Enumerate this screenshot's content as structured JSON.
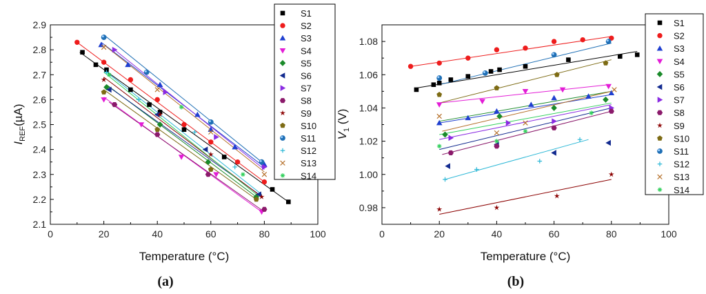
{
  "panels": [
    {
      "label": "(a)",
      "xlabel": "Temperature (°C)",
      "ylabel_main": "I",
      "ylabel_sub": "REF",
      "ylabel_unit": "(µA)",
      "xlim": [
        0,
        100
      ],
      "ylim": [
        2.1,
        2.9
      ],
      "xticks": [
        "0",
        "20",
        "40",
        "60",
        "80",
        "100"
      ],
      "yticks": [
        "2.1",
        "2.2",
        "2.3",
        "2.4",
        "2.5",
        "2.6",
        "2.7",
        "2.8",
        "2.9"
      ]
    },
    {
      "label": "(b)",
      "xlabel": "Temperature (°C)",
      "ylabel_main": "V",
      "ylabel_sub": "1",
      "ylabel_unit": " (V)",
      "xlim": [
        0,
        100
      ],
      "ylim": [
        0.97,
        1.09
      ],
      "xticks": [
        "0",
        "20",
        "40",
        "60",
        "80",
        "100"
      ],
      "yticks": [
        "0.98",
        "1.00",
        "1.02",
        "1.04",
        "1.06",
        "1.08"
      ]
    }
  ],
  "chart_data": [
    {
      "type": "scatter",
      "title": "",
      "xlabel": "Temperature (°C)",
      "ylabel": "IREF(µA)",
      "xlim": [
        0,
        100
      ],
      "ylim": [
        2.1,
        2.9
      ],
      "legend_position": "top-right",
      "series": [
        {
          "name": "S1",
          "color": "#000000",
          "marker": "square",
          "points": [
            [
              12,
              2.79
            ],
            [
              17,
              2.74
            ],
            [
              21,
              2.72
            ],
            [
              30,
              2.64
            ],
            [
              37,
              2.58
            ],
            [
              41,
              2.55
            ],
            [
              50,
              2.48
            ],
            [
              65,
              2.37
            ],
            [
              83,
              2.24
            ],
            [
              89,
              2.19
            ]
          ],
          "fit": [
            [
              11,
              2.79
            ],
            [
              89,
              2.19
            ]
          ]
        },
        {
          "name": "S2",
          "color": "#ee1c1c",
          "marker": "circle",
          "points": [
            [
              10,
              2.83
            ],
            [
              20,
              2.75
            ],
            [
              30,
              2.68
            ],
            [
              40,
              2.6
            ],
            [
              50,
              2.5
            ],
            [
              60,
              2.43
            ],
            [
              70,
              2.35
            ],
            [
              80,
              2.27
            ]
          ],
          "fit": [
            [
              10,
              2.83
            ],
            [
              80,
              2.27
            ]
          ]
        },
        {
          "name": "S3",
          "color": "#1f3fd0",
          "marker": "triangle-up",
          "points": [
            [
              19,
              2.82
            ],
            [
              29,
              2.74
            ],
            [
              41,
              2.66
            ],
            [
              55,
              2.54
            ],
            [
              60,
              2.48
            ],
            [
              69,
              2.41
            ],
            [
              80,
              2.34
            ]
          ],
          "fit": [
            [
              19,
              2.83
            ],
            [
              80,
              2.33
            ]
          ]
        },
        {
          "name": "S4",
          "color": "#e31cd6",
          "marker": "triangle-down",
          "points": [
            [
              20,
              2.6
            ],
            [
              34,
              2.5
            ],
            [
              49,
              2.37
            ],
            [
              62,
              2.3
            ],
            [
              79,
              2.15
            ]
          ],
          "fit": [
            [
              20,
              2.61
            ],
            [
              79,
              2.15
            ]
          ]
        },
        {
          "name": "S5",
          "color": "#1a8a2a",
          "marker": "diamond",
          "points": [
            [
              21,
              2.65
            ],
            [
              41,
              2.5
            ],
            [
              59,
              2.35
            ],
            [
              77,
              2.21
            ]
          ],
          "fit": [
            [
              21,
              2.66
            ],
            [
              77,
              2.21
            ]
          ]
        },
        {
          "name": "S6",
          "color": "#122a8f",
          "marker": "triangle-left",
          "points": [
            [
              22,
              2.64
            ],
            [
              40,
              2.54
            ],
            [
              58,
              2.4
            ],
            [
              78,
              2.22
            ]
          ],
          "fit": [
            [
              22,
              2.65
            ],
            [
              78,
              2.22
            ]
          ]
        },
        {
          "name": "S7",
          "color": "#8a2be2",
          "marker": "triangle-right",
          "points": [
            [
              24,
              2.8
            ],
            [
              43,
              2.63
            ],
            [
              62,
              2.45
            ],
            [
              80,
              2.33
            ]
          ],
          "fit": [
            [
              24,
              2.8
            ],
            [
              80,
              2.32
            ]
          ]
        },
        {
          "name": "S8",
          "color": "#8b1a6b",
          "marker": "hexagon",
          "points": [
            [
              24,
              2.58
            ],
            [
              40,
              2.46
            ],
            [
              59,
              2.3
            ],
            [
              80,
              2.16
            ]
          ],
          "fit": [
            [
              22,
              2.59
            ],
            [
              80,
              2.15
            ]
          ]
        },
        {
          "name": "S9",
          "color": "#8b0000",
          "marker": "star",
          "points": [
            [
              20,
              2.68
            ],
            [
              41,
              2.54
            ],
            [
              60,
              2.38
            ],
            [
              79,
              2.21
            ]
          ],
          "fit": [
            [
              20,
              2.69
            ],
            [
              79,
              2.21
            ]
          ]
        },
        {
          "name": "S10",
          "color": "#7d6b14",
          "marker": "pentagon",
          "points": [
            [
              20,
              2.63
            ],
            [
              40,
              2.48
            ],
            [
              60,
              2.32
            ],
            [
              77,
              2.2
            ]
          ],
          "fit": [
            [
              20,
              2.64
            ],
            [
              77,
              2.2
            ]
          ]
        },
        {
          "name": "S11",
          "color": "#1f6fb5",
          "marker": "circle-shaded",
          "points": [
            [
              20,
              2.85
            ],
            [
              36,
              2.71
            ],
            [
              60,
              2.51
            ],
            [
              79,
              2.35
            ]
          ],
          "fit": [
            [
              20,
              2.86
            ],
            [
              79,
              2.35
            ]
          ]
        },
        {
          "name": "S12",
          "color": "#2ab7d6",
          "marker": "plus",
          "points": [
            [
              21,
              2.71
            ],
            [
              33,
              2.6
            ],
            [
              54,
              2.47
            ],
            [
              69,
              2.33
            ]
          ],
          "fit": [
            [
              21,
              2.71
            ],
            [
              79,
              2.22
            ]
          ]
        },
        {
          "name": "S13",
          "color": "#b5702a",
          "marker": "x",
          "points": [
            [
              20,
              2.81
            ],
            [
              40,
              2.64
            ],
            [
              60,
              2.47
            ],
            [
              80,
              2.3
            ]
          ],
          "fit": [
            [
              20,
              2.82
            ],
            [
              80,
              2.31
            ]
          ]
        },
        {
          "name": "S14",
          "color": "#2fcf5a",
          "marker": "asterisk",
          "points": [
            [
              22,
              2.7
            ],
            [
              49,
              2.57
            ],
            [
              72,
              2.3
            ]
          ],
          "fit": [
            [
              20,
              2.71
            ],
            [
              77,
              2.22
            ]
          ]
        }
      ]
    },
    {
      "type": "scatter",
      "title": "",
      "xlabel": "Temperature (°C)",
      "ylabel": "V1 (V)",
      "xlim": [
        0,
        100
      ],
      "ylim": [
        0.97,
        1.09
      ],
      "legend_position": "top-right",
      "series": [
        {
          "name": "S1",
          "color": "#000000",
          "marker": "square",
          "points": [
            [
              12,
              1.051
            ],
            [
              18,
              1.054
            ],
            [
              20,
              1.055
            ],
            [
              24,
              1.057
            ],
            [
              30,
              1.059
            ],
            [
              38,
              1.062
            ],
            [
              41,
              1.063
            ],
            [
              50,
              1.065
            ],
            [
              65,
              1.069
            ],
            [
              83,
              1.071
            ],
            [
              89,
              1.072
            ]
          ],
          "fit": [
            [
              12,
              1.052
            ],
            [
              89,
              1.074
            ]
          ]
        },
        {
          "name": "S2",
          "color": "#ee1c1c",
          "marker": "circle",
          "points": [
            [
              10,
              1.065
            ],
            [
              20,
              1.067
            ],
            [
              30,
              1.07
            ],
            [
              40,
              1.075
            ],
            [
              50,
              1.076
            ],
            [
              60,
              1.08
            ],
            [
              70,
              1.081
            ],
            [
              80,
              1.082
            ]
          ],
          "fit": [
            [
              10,
              1.065
            ],
            [
              80,
              1.083
            ]
          ]
        },
        {
          "name": "S3",
          "color": "#1f3fd0",
          "marker": "triangle-up",
          "points": [
            [
              20,
              1.031
            ],
            [
              30,
              1.034
            ],
            [
              40,
              1.038
            ],
            [
              52,
              1.042
            ],
            [
              60,
              1.046
            ],
            [
              72,
              1.047
            ],
            [
              80,
              1.049
            ]
          ],
          "fit": [
            [
              20,
              1.031
            ],
            [
              80,
              1.048
            ]
          ]
        },
        {
          "name": "S4",
          "color": "#e31cd6",
          "marker": "triangle-down",
          "points": [
            [
              20,
              1.042
            ],
            [
              35,
              1.044
            ],
            [
              50,
              1.05
            ],
            [
              63,
              1.051
            ],
            [
              79,
              1.053
            ]
          ],
          "fit": [
            [
              20,
              1.043
            ],
            [
              79,
              1.054
            ]
          ]
        },
        {
          "name": "S5",
          "color": "#1a8a2a",
          "marker": "diamond",
          "points": [
            [
              22,
              1.024
            ],
            [
              41,
              1.035
            ],
            [
              60,
              1.04
            ],
            [
              78,
              1.045
            ]
          ],
          "fit": [
            [
              20,
              1.032
            ],
            [
              80,
              1.05
            ]
          ]
        },
        {
          "name": "S6",
          "color": "#122a8f",
          "marker": "triangle-left",
          "points": [
            [
              23,
              1.005
            ],
            [
              40,
              1.018
            ],
            [
              60,
              1.013
            ],
            [
              79,
              1.019
            ]
          ],
          "fit": [
            [
              20,
              1.015
            ],
            [
              80,
              1.04
            ]
          ]
        },
        {
          "name": "S7",
          "color": "#8a2be2",
          "marker": "triangle-right",
          "points": [
            [
              24,
              1.022
            ],
            [
              44,
              1.031
            ],
            [
              60,
              1.032
            ],
            [
              80,
              1.04
            ]
          ],
          "fit": [
            [
              20,
              1.021
            ],
            [
              80,
              1.042
            ]
          ]
        },
        {
          "name": "S8",
          "color": "#8b1a6b",
          "marker": "hexagon",
          "points": [
            [
              24,
              1.013
            ],
            [
              40,
              1.017
            ],
            [
              60,
              1.028
            ],
            [
              80,
              1.038
            ]
          ],
          "fit": [
            [
              21,
              1.012
            ],
            [
              80,
              1.038
            ]
          ]
        },
        {
          "name": "S9",
          "color": "#8b0000",
          "marker": "star",
          "points": [
            [
              20,
              0.979
            ],
            [
              40,
              0.98
            ],
            [
              61,
              0.987
            ],
            [
              80,
              1.0
            ]
          ],
          "fit": [
            [
              20,
              0.976
            ],
            [
              80,
              0.997
            ]
          ]
        },
        {
          "name": "S10",
          "color": "#7d6b14",
          "marker": "pentagon",
          "points": [
            [
              20,
              1.048
            ],
            [
              40,
              1.052
            ],
            [
              61,
              1.06
            ],
            [
              78,
              1.067
            ]
          ],
          "fit": [
            [
              20,
              1.043
            ],
            [
              80,
              1.069
            ]
          ]
        },
        {
          "name": "S11",
          "color": "#1f6fb5",
          "marker": "circle-shaded",
          "points": [
            [
              20,
              1.058
            ],
            [
              36,
              1.061
            ],
            [
              60,
              1.072
            ],
            [
              79,
              1.08
            ]
          ],
          "fit": [
            [
              20,
              1.054
            ],
            [
              80,
              1.079
            ]
          ]
        },
        {
          "name": "S12",
          "color": "#2ab7d6",
          "marker": "plus",
          "points": [
            [
              22,
              0.997
            ],
            [
              33,
              1.003
            ],
            [
              55,
              1.008
            ],
            [
              69,
              1.021
            ]
          ],
          "fit": [
            [
              22,
              0.997
            ],
            [
              72,
              1.021
            ]
          ]
        },
        {
          "name": "S13",
          "color": "#b5702a",
          "marker": "x",
          "points": [
            [
              20,
              1.035
            ],
            [
              40,
              1.025
            ],
            [
              50,
              1.031
            ],
            [
              81,
              1.051
            ]
          ],
          "fit": [
            [
              21,
              1.026
            ],
            [
              80,
              1.05
            ]
          ]
        },
        {
          "name": "S14",
          "color": "#2fcf5a",
          "marker": "asterisk",
          "points": [
            [
              20,
              1.017
            ],
            [
              40,
              1.02
            ],
            [
              50,
              1.026
            ],
            [
              73,
              1.037
            ]
          ],
          "fit": [
            [
              20,
              1.024
            ],
            [
              80,
              1.043
            ]
          ]
        }
      ]
    }
  ]
}
